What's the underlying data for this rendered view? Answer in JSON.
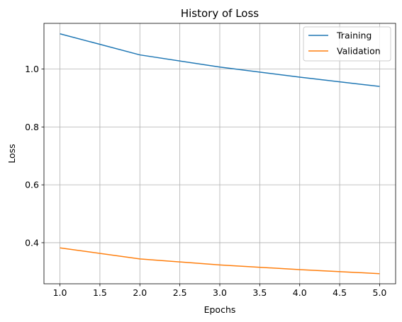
{
  "chart_data": {
    "type": "line",
    "title": "History of Loss",
    "xlabel": "Epochs",
    "ylabel": "Loss",
    "xlim": [
      0.8,
      5.2
    ],
    "ylim": [
      0.258,
      1.158
    ],
    "xticks": [
      1.0,
      1.5,
      2.0,
      2.5,
      3.0,
      3.5,
      4.0,
      4.5,
      5.0
    ],
    "xtick_labels": [
      "1.0",
      "1.5",
      "2.0",
      "2.5",
      "3.0",
      "3.5",
      "4.0",
      "4.5",
      "5.0"
    ],
    "yticks": [
      0.4,
      0.6,
      0.8,
      1.0
    ],
    "ytick_labels": [
      "0.4",
      "0.6",
      "0.8",
      "1.0"
    ],
    "grid": true,
    "legend_position": "top-right",
    "x": [
      1,
      2,
      3,
      4,
      5
    ],
    "series": [
      {
        "name": "Training",
        "color": "#1f77b4",
        "values": [
          1.122,
          1.049,
          1.007,
          0.972,
          0.94
        ]
      },
      {
        "name": "Validation",
        "color": "#ff7f0e",
        "values": [
          0.382,
          0.344,
          0.323,
          0.307,
          0.293
        ]
      }
    ]
  }
}
